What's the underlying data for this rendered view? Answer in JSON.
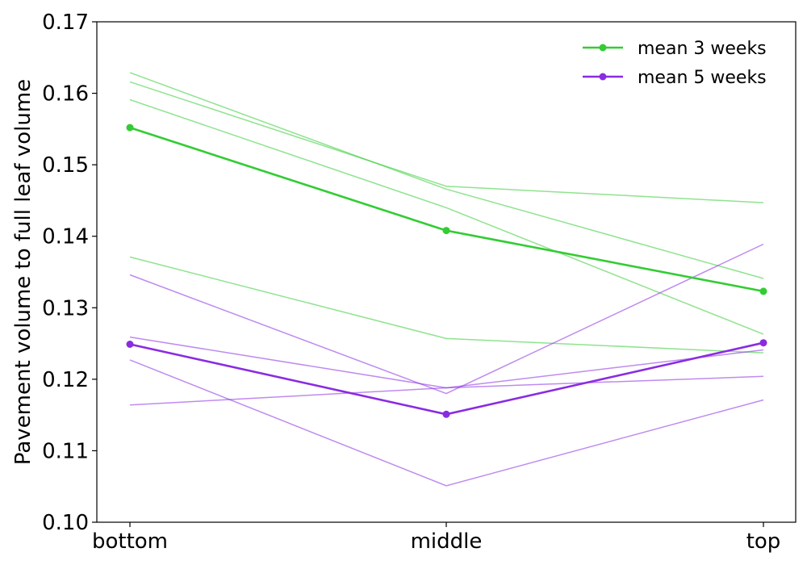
{
  "chart_data": {
    "type": "line",
    "categories": [
      "bottom",
      "middle",
      "top"
    ],
    "ylabel": "Pavement volume to full leaf volume",
    "xlabel": "",
    "ylim": [
      0.1,
      0.17
    ],
    "yticks": [
      "0.10",
      "0.11",
      "0.12",
      "0.13",
      "0.14",
      "0.15",
      "0.16",
      "0.17"
    ],
    "grid": false,
    "legend_position": "top-right",
    "colors": {
      "weeks3": "#33cc33",
      "weeks5": "#8a2be2"
    },
    "series": [
      {
        "name": "mean 3 weeks",
        "group": "weeks3",
        "kind": "mean",
        "values": [
          0.1552,
          0.1408,
          0.1323
        ]
      },
      {
        "name": "mean 5 weeks",
        "group": "weeks5",
        "kind": "mean",
        "values": [
          0.1249,
          0.1151,
          0.1251
        ]
      }
    ],
    "individual_series": [
      {
        "group": "weeks3",
        "values": [
          0.1629,
          0.1466,
          0.1341
        ]
      },
      {
        "group": "weeks3",
        "values": [
          0.1616,
          0.147,
          0.1447
        ]
      },
      {
        "group": "weeks3",
        "values": [
          0.1591,
          0.144,
          0.1263
        ]
      },
      {
        "group": "weeks3",
        "values": [
          0.1371,
          0.1257,
          0.1237
        ]
      },
      {
        "group": "weeks5",
        "values": [
          0.1346,
          0.118,
          0.1389
        ]
      },
      {
        "group": "weeks5",
        "values": [
          0.1259,
          0.1188,
          0.1241
        ]
      },
      {
        "group": "weeks5",
        "values": [
          0.1227,
          0.1051,
          0.1171
        ]
      },
      {
        "group": "weeks5",
        "values": [
          0.1164,
          0.1188,
          0.1204
        ]
      }
    ]
  }
}
